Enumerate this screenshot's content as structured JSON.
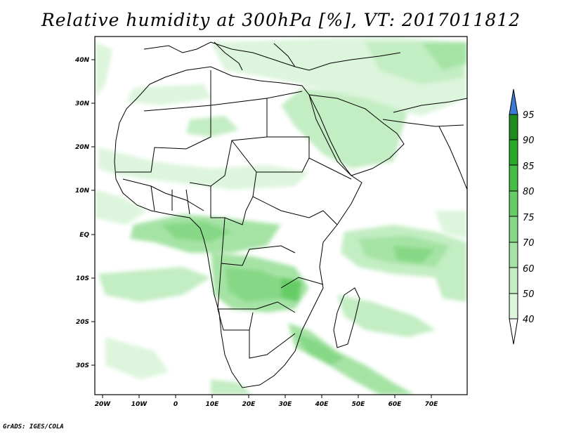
{
  "title": "Relative humidity at 300hPa [%], VT: 2017011812",
  "footer": "GrADS: IGES/COLA",
  "map": {
    "lat_labels": [
      "40N",
      "30N",
      "20N",
      "10N",
      "EQ",
      "10S",
      "20S",
      "30S"
    ],
    "lon_labels": [
      "20W",
      "10W",
      "0",
      "10E",
      "20E",
      "30E",
      "40E",
      "50E",
      "60E",
      "70E"
    ],
    "lon_range": [
      -22,
      80
    ],
    "lat_range": [
      -37,
      45
    ]
  },
  "colorbar": {
    "levels": [
      "40",
      "50",
      "60",
      "70",
      "75",
      "80",
      "85",
      "90",
      "95"
    ],
    "colors": [
      "#f0fcf0",
      "#dcf5dc",
      "#c3edc3",
      "#a5e3a5",
      "#86d886",
      "#66cd66",
      "#46be46",
      "#2aa82a",
      "#1e8c1e",
      "#3a7bd5"
    ]
  }
}
